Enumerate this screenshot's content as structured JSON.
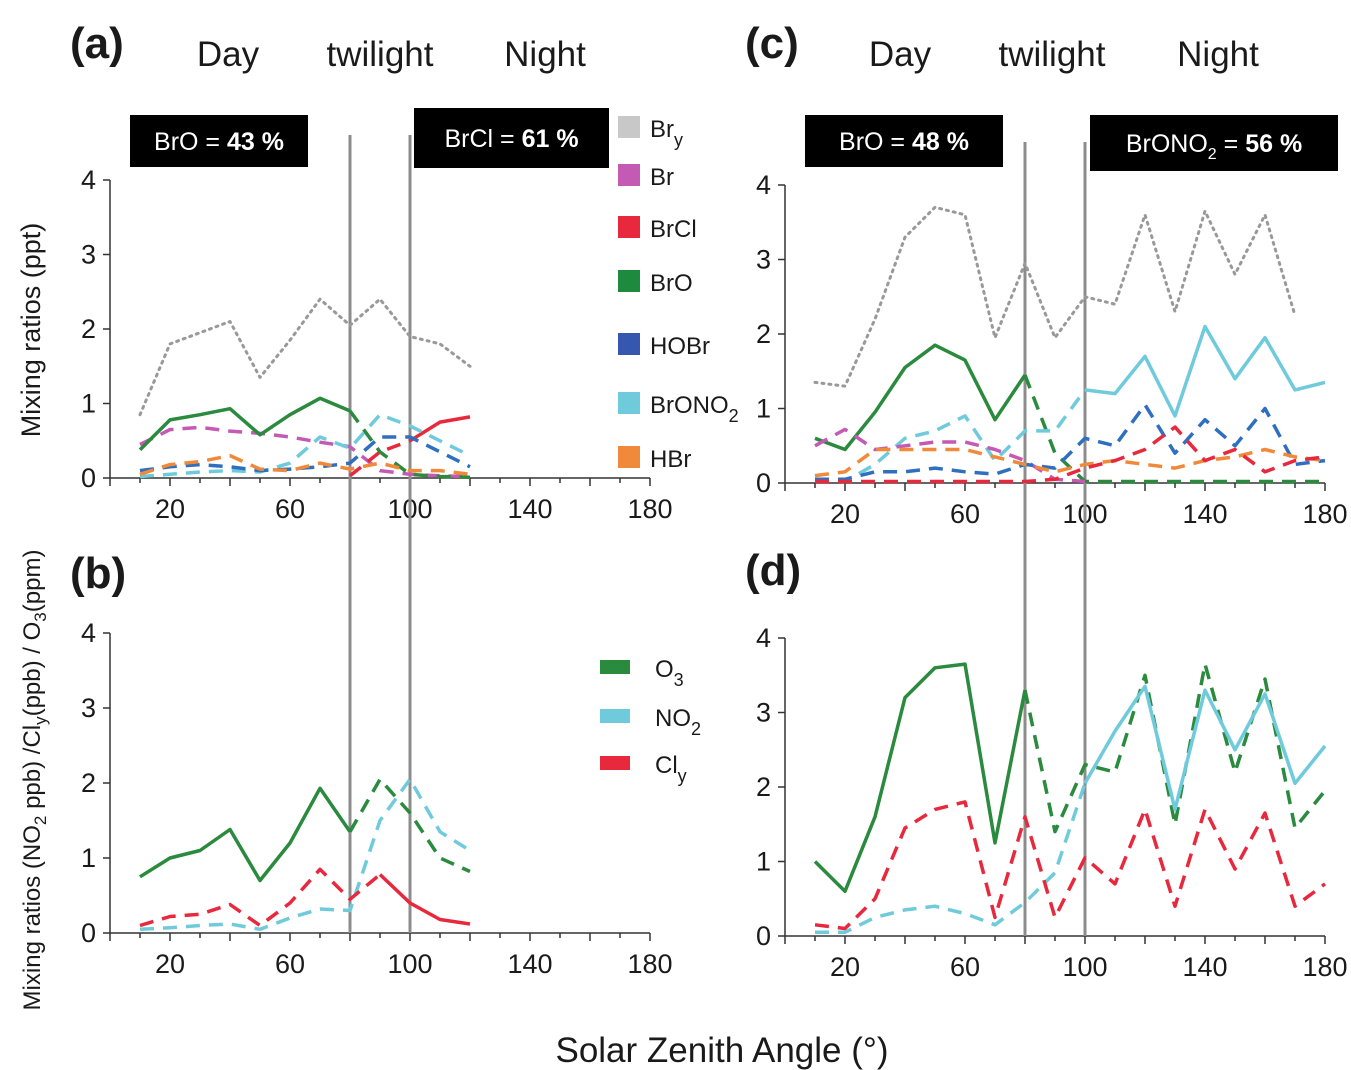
{
  "xlabel": "Solar Zenith Angle (°)",
  "colors": {
    "Bry": "#999999",
    "Br": "#c45ab3",
    "BrCl": "#e8283c",
    "BrO": "#2a8a3e",
    "HOBr": "#2f6fc0",
    "BrONO2": "#6fcbdc",
    "HBr": "#f08a3a",
    "O3": "#2a8a3e",
    "NO2": "#6fcbdc",
    "Cly": "#e8283c",
    "legend_Bry": "#c8c8c8",
    "legend_Br": "#c45ab3",
    "legend_BrCl": "#e8283c",
    "legend_BrO": "#1e8a3e",
    "legend_HOBr": "#3557b0",
    "legend_BrONO2": "#6fcbdc",
    "legend_HBr": "#f08a3a"
  },
  "legend_top": [
    {
      "key": "Bry",
      "main": "Br",
      "sub": "y"
    },
    {
      "key": "Br",
      "main": "Br",
      "sub": ""
    },
    {
      "key": "BrCl",
      "main": "BrCl",
      "sub": ""
    },
    {
      "key": "BrO",
      "main": "BrO",
      "sub": ""
    },
    {
      "key": "HOBr",
      "main": "HOBr",
      "sub": ""
    },
    {
      "key": "BrONO2",
      "main": "BrONO",
      "sub": "2"
    },
    {
      "key": "HBr",
      "main": "HBr",
      "sub": ""
    }
  ],
  "legend_bottom": [
    {
      "key": "O3",
      "main": "O",
      "sub": "3"
    },
    {
      "key": "NO2",
      "main": "NO",
      "sub": "2"
    },
    {
      "key": "Cly",
      "main": "Cl",
      "sub": "y"
    }
  ],
  "chart_data": [
    {
      "id": "a",
      "panel_label": "(a)",
      "type": "line",
      "phases": [
        "Day",
        "twilight",
        "Night"
      ],
      "box_left": {
        "prefix": "BrO = ",
        "value": "43 %"
      },
      "box_right": {
        "prefix": "BrCl = ",
        "value": "61 %",
        "species_main": "",
        "species_sub": ""
      },
      "ylabel": "Mixing ratios (ppt)",
      "xlim": [
        0,
        180
      ],
      "ylim": [
        0,
        4
      ],
      "xticks": [
        "20",
        "60",
        "100",
        "140",
        "180"
      ],
      "yticks": [
        "0",
        "1",
        "2",
        "3",
        "4"
      ],
      "vlines": [
        80,
        100
      ],
      "series": [
        {
          "key": "Bry",
          "style": "dotted",
          "x": [
            10,
            20,
            30,
            40,
            50,
            60,
            70,
            80,
            90,
            100,
            110,
            120
          ],
          "y": [
            0.85,
            1.8,
            1.95,
            2.1,
            1.35,
            1.85,
            2.4,
            2.05,
            2.4,
            1.9,
            1.8,
            1.5
          ]
        },
        {
          "key": "Br",
          "style": "dashed",
          "x": [
            10,
            20,
            30,
            40,
            50,
            60,
            70,
            80,
            90,
            100,
            110,
            120
          ],
          "y": [
            0.45,
            0.65,
            0.68,
            0.63,
            0.6,
            0.55,
            0.48,
            0.42,
            0.1,
            0.05,
            0.03,
            0.02
          ]
        },
        {
          "key": "BrO",
          "style": "solid",
          "x": [
            10,
            20,
            30,
            40,
            50,
            60,
            70,
            80
          ],
          "y": [
            0.38,
            0.78,
            0.85,
            0.93,
            0.58,
            0.85,
            1.07,
            0.9
          ]
        },
        {
          "key": "BrO",
          "style": "dashed",
          "x": [
            80,
            90,
            100,
            110,
            120
          ],
          "y": [
            0.9,
            0.35,
            0.05,
            0.02,
            0.01
          ]
        },
        {
          "key": "BrCl",
          "style": "dashed",
          "x": [
            80,
            90,
            100
          ],
          "y": [
            0.03,
            0.35,
            0.5
          ]
        },
        {
          "key": "BrCl",
          "style": "solid",
          "x": [
            100,
            110,
            120
          ],
          "y": [
            0.5,
            0.75,
            0.82
          ]
        },
        {
          "key": "BrONO2",
          "style": "dashed",
          "x": [
            10,
            20,
            30,
            40,
            50,
            60,
            70,
            80,
            90,
            100,
            110,
            120
          ],
          "y": [
            0.02,
            0.05,
            0.08,
            0.1,
            0.08,
            0.2,
            0.55,
            0.4,
            0.85,
            0.7,
            0.5,
            0.3
          ]
        },
        {
          "key": "HOBr",
          "style": "dashed",
          "x": [
            10,
            20,
            30,
            40,
            50,
            60,
            70,
            80,
            90,
            100,
            110,
            120
          ],
          "y": [
            0.1,
            0.15,
            0.18,
            0.15,
            0.1,
            0.12,
            0.15,
            0.2,
            0.55,
            0.55,
            0.35,
            0.15
          ]
        },
        {
          "key": "HBr",
          "style": "dashed",
          "x": [
            10,
            20,
            30,
            40,
            50,
            60,
            70,
            80,
            90,
            100,
            110,
            120
          ],
          "y": [
            0.05,
            0.18,
            0.22,
            0.3,
            0.12,
            0.1,
            0.2,
            0.12,
            0.2,
            0.1,
            0.1,
            0.05
          ]
        }
      ]
    },
    {
      "id": "b",
      "panel_label": "(b)",
      "type": "line",
      "ylabel_parts": [
        {
          "t": "Mixing ratios (NO",
          "sub": false
        },
        {
          "t": "2",
          "sub": true
        },
        {
          "t": " ppb) /Cl",
          "sub": false
        },
        {
          "t": "y",
          "sub": true
        },
        {
          "t": "(ppb) / O",
          "sub": false
        },
        {
          "t": "3",
          "sub": true
        },
        {
          "t": "(ppm)",
          "sub": false
        }
      ],
      "xlim": [
        0,
        180
      ],
      "ylim": [
        0,
        4
      ],
      "xticks": [
        "20",
        "60",
        "100",
        "140",
        "180"
      ],
      "yticks": [
        "0",
        "1",
        "2",
        "3",
        "4"
      ],
      "vlines": [
        80,
        100
      ],
      "series": [
        {
          "key": "O3",
          "style": "solid",
          "x": [
            10,
            20,
            30,
            40,
            50,
            60,
            70,
            80
          ],
          "y": [
            0.75,
            1.0,
            1.1,
            1.38,
            0.7,
            1.2,
            1.93,
            1.35
          ]
        },
        {
          "key": "O3",
          "style": "dashed",
          "x": [
            80,
            90,
            100,
            110,
            120
          ],
          "y": [
            1.35,
            2.05,
            1.6,
            1.0,
            0.82
          ]
        },
        {
          "key": "NO2",
          "style": "dashed",
          "x": [
            10,
            20,
            30,
            40,
            50,
            60,
            70,
            80,
            90,
            100,
            110,
            120
          ],
          "y": [
            0.05,
            0.07,
            0.1,
            0.12,
            0.05,
            0.2,
            0.32,
            0.3,
            1.5,
            2.05,
            1.35,
            1.1
          ]
        },
        {
          "key": "Cly",
          "style": "dashed",
          "x": [
            10,
            20,
            30,
            40,
            50,
            60,
            70,
            80,
            90
          ],
          "y": [
            0.1,
            0.22,
            0.25,
            0.38,
            0.1,
            0.4,
            0.85,
            0.45,
            0.78
          ]
        },
        {
          "key": "Cly",
          "style": "solid",
          "x": [
            90,
            100,
            110,
            120
          ],
          "y": [
            0.78,
            0.4,
            0.18,
            0.12
          ]
        }
      ]
    },
    {
      "id": "c",
      "panel_label": "(c)",
      "type": "line",
      "phases": [
        "Day",
        "twilight",
        "Night"
      ],
      "box_left": {
        "prefix": "BrO = ",
        "value": "48 %"
      },
      "box_right": {
        "prefix": " = ",
        "value": "56 %",
        "species_main": "BrONO",
        "species_sub": "2"
      },
      "xlim": [
        0,
        180
      ],
      "ylim": [
        0,
        4
      ],
      "xticks": [
        "20",
        "60",
        "100",
        "140",
        "180"
      ],
      "yticks": [
        "0",
        "1",
        "2",
        "3",
        "4"
      ],
      "vlines": [
        80,
        100
      ],
      "series": [
        {
          "key": "Bry",
          "style": "dotted",
          "x": [
            10,
            20,
            30,
            40,
            50,
            60,
            70,
            80,
            90,
            100,
            110,
            120,
            130,
            140,
            150,
            160,
            170
          ],
          "y": [
            1.35,
            1.3,
            2.2,
            3.3,
            3.7,
            3.6,
            1.95,
            2.95,
            1.95,
            2.5,
            2.4,
            3.6,
            2.3,
            3.65,
            2.8,
            3.6,
            2.25
          ]
        },
        {
          "key": "BrO",
          "style": "solid",
          "x": [
            10,
            20,
            30,
            40,
            50,
            60,
            70,
            80
          ],
          "y": [
            0.6,
            0.45,
            0.95,
            1.55,
            1.85,
            1.65,
            0.85,
            1.45
          ]
        },
        {
          "key": "BrO",
          "style": "dashed",
          "x": [
            80,
            90,
            100,
            110,
            120,
            130,
            140,
            150,
            160,
            170,
            180
          ],
          "y": [
            1.45,
            0.4,
            0.02,
            0.02,
            0.02,
            0.02,
            0.02,
            0.02,
            0.02,
            0.02,
            0.02
          ]
        },
        {
          "key": "BrONO2",
          "style": "dashed",
          "x": [
            10,
            20,
            30,
            40,
            50,
            60,
            70,
            80,
            90,
            100
          ],
          "y": [
            0.05,
            0.02,
            0.25,
            0.6,
            0.7,
            0.9,
            0.3,
            0.7,
            0.7,
            1.25
          ]
        },
        {
          "key": "BrONO2",
          "style": "solid",
          "x": [
            100,
            110,
            120,
            130,
            140,
            150,
            160,
            170,
            180
          ],
          "y": [
            1.25,
            1.2,
            1.7,
            0.9,
            2.1,
            1.4,
            1.95,
            1.25,
            1.35
          ]
        },
        {
          "key": "Br",
          "style": "dashed",
          "x": [
            10,
            20,
            30,
            40,
            50,
            60,
            70,
            80,
            90,
            100
          ],
          "y": [
            0.5,
            0.72,
            0.45,
            0.5,
            0.55,
            0.55,
            0.45,
            0.3,
            0.05,
            0.02
          ]
        },
        {
          "key": "HOBr",
          "style": "dashed",
          "x": [
            10,
            20,
            30,
            40,
            50,
            60,
            70,
            80,
            90,
            100,
            110,
            120,
            130,
            140,
            150,
            160,
            170,
            180
          ],
          "y": [
            0.05,
            0.05,
            0.15,
            0.15,
            0.2,
            0.15,
            0.12,
            0.25,
            0.2,
            0.6,
            0.5,
            1.05,
            0.4,
            0.85,
            0.5,
            1.0,
            0.25,
            0.3
          ]
        },
        {
          "key": "HBr",
          "style": "dashed",
          "x": [
            10,
            20,
            30,
            40,
            50,
            60,
            70,
            80,
            90,
            100,
            110,
            120,
            130,
            140,
            150,
            160,
            170,
            180
          ],
          "y": [
            0.1,
            0.15,
            0.45,
            0.45,
            0.45,
            0.45,
            0.35,
            0.25,
            0.15,
            0.25,
            0.3,
            0.25,
            0.2,
            0.3,
            0.35,
            0.45,
            0.35,
            0.3
          ]
        },
        {
          "key": "BrCl",
          "style": "dashed",
          "x": [
            10,
            20,
            30,
            40,
            50,
            60,
            70,
            80,
            90,
            100,
            110,
            120,
            130,
            140,
            150,
            160,
            170,
            180
          ],
          "y": [
            0.02,
            0.02,
            0.02,
            0.02,
            0.02,
            0.02,
            0.02,
            0.02,
            0.05,
            0.2,
            0.3,
            0.45,
            0.75,
            0.3,
            0.45,
            0.15,
            0.3,
            0.35
          ]
        }
      ]
    },
    {
      "id": "d",
      "panel_label": "(d)",
      "type": "line",
      "xlim": [
        0,
        180
      ],
      "ylim": [
        0,
        4
      ],
      "xticks": [
        "20",
        "60",
        "100",
        "140",
        "180"
      ],
      "yticks": [
        "0",
        "1",
        "2",
        "3",
        "4"
      ],
      "vlines": [
        80,
        100
      ],
      "series": [
        {
          "key": "O3",
          "style": "solid",
          "x": [
            10,
            20,
            30,
            40,
            50,
            60,
            70,
            80
          ],
          "y": [
            1.0,
            0.6,
            1.6,
            3.2,
            3.6,
            3.65,
            1.25,
            3.3
          ]
        },
        {
          "key": "O3",
          "style": "dashed",
          "x": [
            80,
            90,
            100,
            110,
            120,
            130,
            140,
            150,
            160,
            170,
            180
          ],
          "y": [
            3.3,
            1.4,
            2.3,
            2.2,
            3.5,
            1.5,
            3.65,
            2.2,
            3.45,
            1.45,
            1.95
          ]
        },
        {
          "key": "NO2",
          "style": "dashed",
          "x": [
            10,
            20,
            30,
            40,
            50,
            60,
            70,
            80,
            90,
            100
          ],
          "y": [
            0.05,
            0.05,
            0.25,
            0.35,
            0.4,
            0.3,
            0.15,
            0.45,
            0.85,
            2.05
          ]
        },
        {
          "key": "NO2",
          "style": "solid",
          "x": [
            100,
            110,
            120,
            130,
            140,
            150,
            160,
            170,
            180
          ],
          "y": [
            2.05,
            2.75,
            3.35,
            1.7,
            3.3,
            2.5,
            3.25,
            2.05,
            2.55
          ]
        },
        {
          "key": "Cly",
          "style": "dashed",
          "x": [
            10,
            20,
            30,
            40,
            50,
            60,
            70,
            80,
            90,
            100,
            110,
            120,
            130,
            140,
            150,
            160,
            170,
            180
          ],
          "y": [
            0.15,
            0.1,
            0.5,
            1.45,
            1.7,
            1.8,
            0.25,
            1.6,
            0.25,
            1.05,
            0.7,
            1.7,
            0.4,
            1.7,
            0.9,
            1.65,
            0.4,
            0.7
          ]
        }
      ]
    }
  ]
}
